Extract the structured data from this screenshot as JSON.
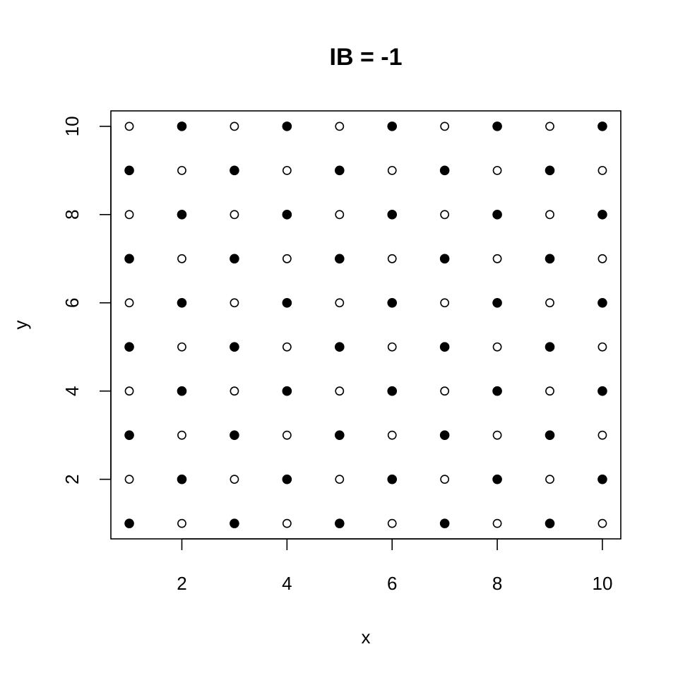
{
  "chart_data": {
    "type": "scatter",
    "title": "IB = -1",
    "xlabel": "x",
    "ylabel": "y",
    "xlim": [
      0.65,
      10.35
    ],
    "ylim": [
      0.65,
      10.35
    ],
    "x_ticks": [
      2,
      4,
      6,
      8,
      10
    ],
    "y_ticks": [
      2,
      4,
      6,
      8,
      10
    ],
    "grid": false,
    "legend": "none",
    "filled_rule": "filled when x + y is even; open when x + y is odd",
    "series": [
      {
        "marker": "filled-circle",
        "color": "#000000",
        "points": [
          [
            1,
            1
          ],
          [
            1,
            3
          ],
          [
            1,
            5
          ],
          [
            1,
            7
          ],
          [
            1,
            9
          ],
          [
            2,
            2
          ],
          [
            2,
            4
          ],
          [
            2,
            6
          ],
          [
            2,
            8
          ],
          [
            2,
            10
          ],
          [
            3,
            1
          ],
          [
            3,
            3
          ],
          [
            3,
            5
          ],
          [
            3,
            7
          ],
          [
            3,
            9
          ],
          [
            4,
            2
          ],
          [
            4,
            4
          ],
          [
            4,
            6
          ],
          [
            4,
            8
          ],
          [
            4,
            10
          ],
          [
            5,
            1
          ],
          [
            5,
            3
          ],
          [
            5,
            5
          ],
          [
            5,
            7
          ],
          [
            5,
            9
          ],
          [
            6,
            2
          ],
          [
            6,
            4
          ],
          [
            6,
            6
          ],
          [
            6,
            8
          ],
          [
            6,
            10
          ],
          [
            7,
            1
          ],
          [
            7,
            3
          ],
          [
            7,
            5
          ],
          [
            7,
            7
          ],
          [
            7,
            9
          ],
          [
            8,
            2
          ],
          [
            8,
            4
          ],
          [
            8,
            6
          ],
          [
            8,
            8
          ],
          [
            8,
            10
          ],
          [
            9,
            1
          ],
          [
            9,
            3
          ],
          [
            9,
            5
          ],
          [
            9,
            7
          ],
          [
            9,
            9
          ],
          [
            10,
            2
          ],
          [
            10,
            4
          ],
          [
            10,
            6
          ],
          [
            10,
            8
          ],
          [
            10,
            10
          ]
        ]
      },
      {
        "marker": "open-circle",
        "color": "#000000",
        "points": [
          [
            1,
            2
          ],
          [
            1,
            4
          ],
          [
            1,
            6
          ],
          [
            1,
            8
          ],
          [
            1,
            10
          ],
          [
            2,
            1
          ],
          [
            2,
            3
          ],
          [
            2,
            5
          ],
          [
            2,
            7
          ],
          [
            2,
            9
          ],
          [
            3,
            2
          ],
          [
            3,
            4
          ],
          [
            3,
            6
          ],
          [
            3,
            8
          ],
          [
            3,
            10
          ],
          [
            4,
            1
          ],
          [
            4,
            3
          ],
          [
            4,
            5
          ],
          [
            4,
            7
          ],
          [
            4,
            9
          ],
          [
            5,
            2
          ],
          [
            5,
            4
          ],
          [
            5,
            6
          ],
          [
            5,
            8
          ],
          [
            5,
            10
          ],
          [
            6,
            1
          ],
          [
            6,
            3
          ],
          [
            6,
            5
          ],
          [
            6,
            7
          ],
          [
            6,
            9
          ],
          [
            7,
            2
          ],
          [
            7,
            4
          ],
          [
            7,
            6
          ],
          [
            7,
            8
          ],
          [
            7,
            10
          ],
          [
            8,
            1
          ],
          [
            8,
            3
          ],
          [
            8,
            5
          ],
          [
            8,
            7
          ],
          [
            8,
            9
          ],
          [
            9,
            2
          ],
          [
            9,
            4
          ],
          [
            9,
            6
          ],
          [
            9,
            8
          ],
          [
            9,
            10
          ],
          [
            10,
            1
          ],
          [
            10,
            3
          ],
          [
            10,
            5
          ],
          [
            10,
            7
          ],
          [
            10,
            9
          ]
        ]
      }
    ]
  }
}
